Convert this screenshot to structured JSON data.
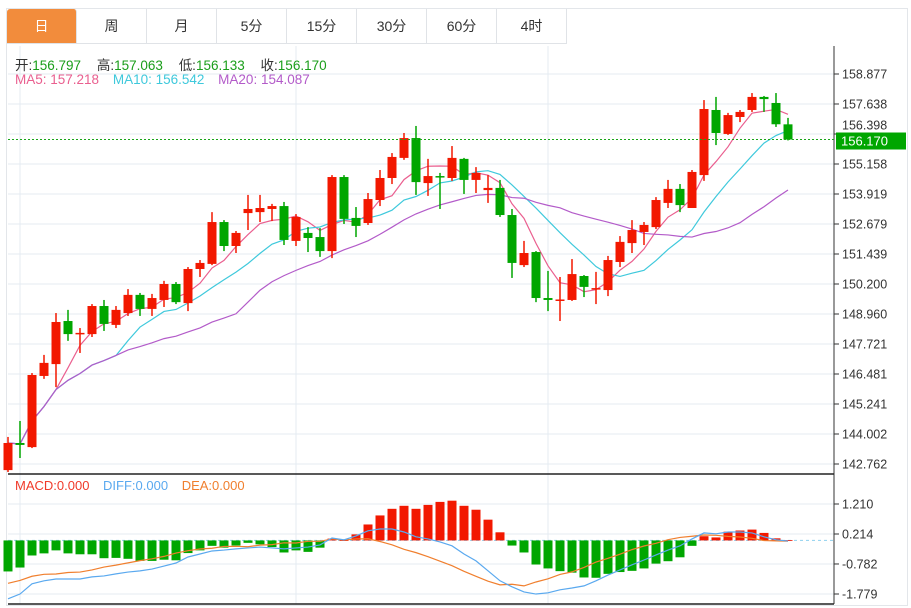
{
  "tabs": [
    "日",
    "周",
    "月",
    "5分",
    "15分",
    "30分",
    "60分",
    "4时"
  ],
  "active_tab": 0,
  "ohlc_info": {
    "open_label": "开:",
    "open": "156.797",
    "high_label": "高:",
    "high": "157.063",
    "low_label": "低:",
    "low": "156.133",
    "close_label": "收:",
    "close": "156.170"
  },
  "ma_info": {
    "ma5": "MA5: 157.218",
    "ma10": "MA10: 156.542",
    "ma20": "MA20: 154.087"
  },
  "macd_info": {
    "macd": "MACD:0.000",
    "diff": "DIFF:0.000",
    "dea": "DEA:0.000"
  },
  "current_price": "156.170",
  "colors": {
    "up": "#f21800",
    "down": "#00a600",
    "ma5": "#ea5f8f",
    "ma10": "#3fc9dc",
    "ma20": "#b35bc9",
    "diff": "#5aa9ef",
    "dea": "#f07f2e",
    "active_tab": "#f28c3c"
  },
  "chart_data": [
    {
      "type": "candlestick",
      "title": "",
      "y_ticks": [
        "158.877",
        "157.638",
        "156.398",
        "155.158",
        "153.919",
        "152.679",
        "151.439",
        "150.200",
        "148.960",
        "147.721",
        "146.481",
        "145.241",
        "144.002",
        "142.762"
      ],
      "ylim": [
        142.762,
        158.877
      ],
      "grid": true,
      "ohlc": [
        [
          142.51,
          143.88,
          142.43,
          143.63
        ],
        [
          143.63,
          144.54,
          143.01,
          143.55
        ],
        [
          143.46,
          146.52,
          143.42,
          146.44
        ],
        [
          146.4,
          147.27,
          146.28,
          146.94
        ],
        [
          146.89,
          149.0,
          145.94,
          148.63
        ],
        [
          148.67,
          149.13,
          147.85,
          148.13
        ],
        [
          148.13,
          148.38,
          147.35,
          148.18
        ],
        [
          148.13,
          149.37,
          148.01,
          149.29
        ],
        [
          149.29,
          149.54,
          148.26,
          148.55
        ],
        [
          148.51,
          149.29,
          148.38,
          149.13
        ],
        [
          149.0,
          149.99,
          148.88,
          149.75
        ],
        [
          149.75,
          149.83,
          148.88,
          149.17
        ],
        [
          149.17,
          149.79,
          148.88,
          149.62
        ],
        [
          149.54,
          150.33,
          149.25,
          150.2
        ],
        [
          150.2,
          150.28,
          149.37,
          149.45
        ],
        [
          149.41,
          150.9,
          149.08,
          150.82
        ],
        [
          150.82,
          151.19,
          150.49,
          151.07
        ],
        [
          151.03,
          153.17,
          150.98,
          152.76
        ],
        [
          152.76,
          152.84,
          151.56,
          151.77
        ],
        [
          151.77,
          152.39,
          151.48,
          152.31
        ],
        [
          153.13,
          153.88,
          152.43,
          153.3
        ],
        [
          153.17,
          153.88,
          152.76,
          153.34
        ],
        [
          153.3,
          153.51,
          152.8,
          153.42
        ],
        [
          153.42,
          153.59,
          151.81,
          152.02
        ],
        [
          151.98,
          153.09,
          151.77,
          152.97
        ],
        [
          152.31,
          152.55,
          151.52,
          152.1
        ],
        [
          152.14,
          152.51,
          151.32,
          151.56
        ],
        [
          151.56,
          154.7,
          151.27,
          154.62
        ],
        [
          154.62,
          154.7,
          152.68,
          152.89
        ],
        [
          152.93,
          153.38,
          152.14,
          152.6
        ],
        [
          152.72,
          153.96,
          152.64,
          153.71
        ],
        [
          153.67,
          154.91,
          153.42,
          154.58
        ],
        [
          154.58,
          155.61,
          154.33,
          155.45
        ],
        [
          155.41,
          156.44,
          155.33,
          156.23
        ],
        [
          156.23,
          156.73,
          153.88,
          154.41
        ],
        [
          154.37,
          155.37,
          153.84,
          154.66
        ],
        [
          154.66,
          154.79,
          153.3,
          154.62
        ],
        [
          154.58,
          155.9,
          154.46,
          155.41
        ],
        [
          155.37,
          155.41,
          153.92,
          154.5
        ],
        [
          154.5,
          155.03,
          153.96,
          154.79
        ],
        [
          154.08,
          154.7,
          153.55,
          154.17
        ],
        [
          154.17,
          154.5,
          152.97,
          153.05
        ],
        [
          153.05,
          153.3,
          150.45,
          151.07
        ],
        [
          150.98,
          151.98,
          150.9,
          151.48
        ],
        [
          151.52,
          151.56,
          149.45,
          149.62
        ],
        [
          149.62,
          150.74,
          149.08,
          149.54
        ],
        [
          149.54,
          150.49,
          148.67,
          149.56
        ],
        [
          149.54,
          151.23,
          149.5,
          150.61
        ],
        [
          150.53,
          150.57,
          149.66,
          150.08
        ],
        [
          149.99,
          150.7,
          149.37,
          150.03
        ],
        [
          149.95,
          151.36,
          149.7,
          151.19
        ],
        [
          151.11,
          152.18,
          150.9,
          151.94
        ],
        [
          151.89,
          152.84,
          151.48,
          152.43
        ],
        [
          152.35,
          152.76,
          151.81,
          152.64
        ],
        [
          152.55,
          153.79,
          152.47,
          153.67
        ],
        [
          153.55,
          154.5,
          153.34,
          154.13
        ],
        [
          154.13,
          154.33,
          153.17,
          153.46
        ],
        [
          153.34,
          154.91,
          153.34,
          154.83
        ],
        [
          154.7,
          157.8,
          154.46,
          157.43
        ],
        [
          157.39,
          157.93,
          155.94,
          156.44
        ],
        [
          156.4,
          157.27,
          156.36,
          157.18
        ],
        [
          157.1,
          157.39,
          156.89,
          157.31
        ],
        [
          157.39,
          158.09,
          157.31,
          157.93
        ],
        [
          157.93,
          157.97,
          157.31,
          157.84
        ],
        [
          157.68,
          158.09,
          156.69,
          156.8
        ],
        [
          156.797,
          157.063,
          156.133,
          156.17
        ]
      ],
      "ohlc_order": [
        "open",
        "high",
        "low",
        "close"
      ],
      "overlays": [
        "MA5",
        "MA10",
        "MA20"
      ]
    },
    {
      "type": "bar",
      "title": "MACD",
      "y_ticks": [
        "1.210",
        "0.214",
        "-0.782",
        "-1.779"
      ],
      "ylim": [
        -1.779,
        1.21
      ],
      "macd_hist": [
        -1.03,
        -0.9,
        -0.5,
        -0.43,
        -0.33,
        -0.43,
        -0.46,
        -0.46,
        -0.59,
        -0.58,
        -0.61,
        -0.68,
        -0.68,
        -0.64,
        -0.66,
        -0.42,
        -0.33,
        -0.18,
        -0.24,
        -0.17,
        -0.08,
        -0.13,
        -0.22,
        -0.4,
        -0.33,
        -0.38,
        -0.24,
        0.06,
        0.01,
        0.2,
        0.53,
        0.83,
        1.05,
        1.15,
        1.05,
        1.18,
        1.28,
        1.32,
        1.15,
        1.02,
        0.69,
        0.27,
        -0.17,
        -0.4,
        -0.8,
        -0.93,
        -1.02,
        -1.07,
        -1.23,
        -1.24,
        -1.11,
        -1.05,
        -1.01,
        -0.93,
        -0.77,
        -0.69,
        -0.56,
        -0.18,
        0.14,
        0.1,
        0.29,
        0.33,
        0.36,
        0.25,
        0.07,
        0.01
      ],
      "diff": [
        -1.94,
        -1.78,
        -1.44,
        -1.34,
        -1.28,
        -1.28,
        -1.28,
        -1.21,
        -1.18,
        -1.11,
        -1.05,
        -1.01,
        -0.95,
        -0.85,
        -0.75,
        -0.55,
        -0.45,
        -0.35,
        -0.32,
        -0.28,
        -0.25,
        -0.22,
        -0.25,
        -0.28,
        -0.25,
        -0.22,
        -0.15,
        0.08,
        0.02,
        0.15,
        0.32,
        0.38,
        0.38,
        0.28,
        0.12,
        0.05,
        -0.05,
        -0.18,
        -0.45,
        -0.68,
        -1.01,
        -1.34,
        -1.54,
        -1.71,
        -1.78,
        -1.74,
        -1.64,
        -1.58,
        -1.51,
        -1.34,
        -1.15,
        -0.98,
        -0.81,
        -0.65,
        -0.48,
        -0.32,
        -0.18,
        0.05,
        0.25,
        0.22,
        0.28,
        0.28,
        0.25,
        0.12,
        0.02,
        -0.02
      ]
    }
  ]
}
